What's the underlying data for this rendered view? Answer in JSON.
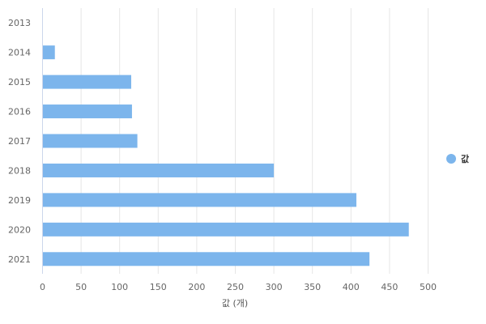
{
  "chart_data": {
    "type": "bar",
    "orientation": "horizontal",
    "categories": [
      "2013",
      "2014",
      "2015",
      "2016",
      "2017",
      "2018",
      "2019",
      "2020",
      "2021"
    ],
    "series": [
      {
        "name": "값",
        "values": [
          0,
          16,
          115,
          116,
          123,
          300,
          407,
          475,
          424
        ],
        "color": "#7cb5ec"
      }
    ],
    "xlabel": "값 (개)",
    "ylabel": "",
    "xlim": [
      0,
      550
    ],
    "xticks": [
      0,
      50,
      100,
      150,
      200,
      250,
      300,
      350,
      400,
      450,
      500
    ],
    "grid": true,
    "legend_position": "right"
  }
}
